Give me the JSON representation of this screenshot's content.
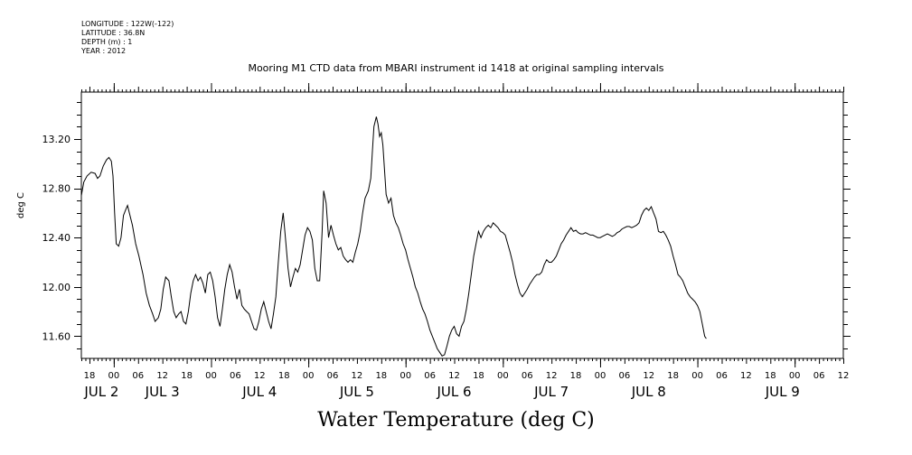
{
  "header": {
    "longitude": "LONGITUDE : 122W(-122)",
    "latitude": "LATITUDE : 36.8N",
    "depth": "DEPTH (m) : 1",
    "year": "YEAR : 2012"
  },
  "chart_data": {
    "type": "line",
    "title": "Mooring M1 CTD data from MBARI instrument id 1418 at original sampling intervals",
    "xlabel": "Water Temperature (deg C)",
    "ylabel": "deg C",
    "x_unit": "hours since JUL 2 00:00 (2012)",
    "xlim": [
      -8,
      180
    ],
    "ylim": [
      11.42,
      13.58
    ],
    "y_ticks": [
      11.6,
      12.0,
      12.4,
      12.8,
      13.2
    ],
    "y_tick_labels": [
      "11.60",
      "12.00",
      "12.40",
      "12.80",
      "13.20"
    ],
    "x_hour_ticks": [
      {
        "hour": -6,
        "label": "18"
      },
      {
        "hour": 0,
        "label": "00"
      },
      {
        "hour": 6,
        "label": "06"
      },
      {
        "hour": 12,
        "label": "12"
      },
      {
        "hour": 18,
        "label": "18"
      },
      {
        "hour": 24,
        "label": "00"
      },
      {
        "hour": 30,
        "label": "06"
      },
      {
        "hour": 36,
        "label": "12"
      },
      {
        "hour": 42,
        "label": "18"
      },
      {
        "hour": 48,
        "label": "00"
      },
      {
        "hour": 54,
        "label": "06"
      },
      {
        "hour": 60,
        "label": "12"
      },
      {
        "hour": 66,
        "label": "18"
      },
      {
        "hour": 72,
        "label": "00"
      },
      {
        "hour": 78,
        "label": "06"
      },
      {
        "hour": 84,
        "label": "12"
      },
      {
        "hour": 90,
        "label": "18"
      },
      {
        "hour": 96,
        "label": "00"
      },
      {
        "hour": 102,
        "label": "06"
      },
      {
        "hour": 108,
        "label": "12"
      },
      {
        "hour": 114,
        "label": "18"
      },
      {
        "hour": 120,
        "label": "00"
      },
      {
        "hour": 126,
        "label": "06"
      },
      {
        "hour": 132,
        "label": "12"
      },
      {
        "hour": 138,
        "label": "18"
      },
      {
        "hour": 144,
        "label": "00"
      },
      {
        "hour": 150,
        "label": "06"
      },
      {
        "hour": 156,
        "label": "12"
      },
      {
        "hour": 162,
        "label": "18"
      },
      {
        "hour": 168,
        "label": "00"
      },
      {
        "hour": 174,
        "label": "06"
      },
      {
        "hour": 180,
        "label": "12"
      }
    ],
    "x_day_labels": [
      {
        "hour": -3,
        "label": "JUL  2"
      },
      {
        "hour": 12,
        "label": "JUL  3"
      },
      {
        "hour": 36,
        "label": "JUL  4"
      },
      {
        "hour": 60,
        "label": "JUL  5"
      },
      {
        "hour": 84,
        "label": "JUL  6"
      },
      {
        "hour": 108,
        "label": "JUL  7"
      },
      {
        "hour": 132,
        "label": "JUL  8"
      },
      {
        "hour": 165,
        "label": "JUL  9"
      }
    ],
    "series": [
      {
        "line_color": "#000000",
        "points": [
          [
            -8,
            12.74
          ],
          [
            -7.4,
            12.85
          ],
          [
            -6.6,
            12.9
          ],
          [
            -5.6,
            12.93
          ],
          [
            -4.6,
            12.92
          ],
          [
            -4,
            12.88
          ],
          [
            -3.4,
            12.9
          ],
          [
            -2.6,
            12.98
          ],
          [
            -1.8,
            13.03
          ],
          [
            -1.2,
            13.05
          ],
          [
            -0.6,
            13.02
          ],
          [
            -0.2,
            12.9
          ],
          [
            0.2,
            12.6
          ],
          [
            0.6,
            12.35
          ],
          [
            1.2,
            12.33
          ],
          [
            1.8,
            12.4
          ],
          [
            2.4,
            12.58
          ],
          [
            3,
            12.63
          ],
          [
            3.4,
            12.66
          ],
          [
            4,
            12.58
          ],
          [
            4.6,
            12.5
          ],
          [
            5.4,
            12.35
          ],
          [
            6.2,
            12.25
          ],
          [
            7.2,
            12.1
          ],
          [
            8,
            11.95
          ],
          [
            8.8,
            11.85
          ],
          [
            9.6,
            11.78
          ],
          [
            10.2,
            11.72
          ],
          [
            11,
            11.75
          ],
          [
            11.6,
            11.82
          ],
          [
            12.2,
            11.98
          ],
          [
            12.8,
            12.08
          ],
          [
            13.6,
            12.05
          ],
          [
            14.2,
            11.92
          ],
          [
            14.8,
            11.8
          ],
          [
            15.4,
            11.75
          ],
          [
            16,
            11.78
          ],
          [
            16.6,
            11.8
          ],
          [
            17.2,
            11.72
          ],
          [
            17.8,
            11.7
          ],
          [
            18.4,
            11.8
          ],
          [
            19,
            11.95
          ],
          [
            19.6,
            12.05
          ],
          [
            20.2,
            12.1
          ],
          [
            20.8,
            12.05
          ],
          [
            21.4,
            12.08
          ],
          [
            22,
            12.03
          ],
          [
            22.6,
            11.95
          ],
          [
            23.2,
            12.1
          ],
          [
            23.8,
            12.12
          ],
          [
            24.4,
            12.05
          ],
          [
            25,
            11.92
          ],
          [
            25.6,
            11.75
          ],
          [
            26.2,
            11.68
          ],
          [
            26.8,
            11.82
          ],
          [
            27.4,
            11.98
          ],
          [
            28,
            12.1
          ],
          [
            28.6,
            12.18
          ],
          [
            29.2,
            12.12
          ],
          [
            29.8,
            12
          ],
          [
            30.4,
            11.9
          ],
          [
            31,
            11.98
          ],
          [
            31.6,
            11.85
          ],
          [
            32.2,
            11.82
          ],
          [
            32.8,
            11.8
          ],
          [
            33.4,
            11.78
          ],
          [
            34,
            11.72
          ],
          [
            34.6,
            11.66
          ],
          [
            35.2,
            11.65
          ],
          [
            35.8,
            11.72
          ],
          [
            36.4,
            11.82
          ],
          [
            37,
            11.88
          ],
          [
            37.6,
            11.8
          ],
          [
            38.2,
            11.72
          ],
          [
            38.8,
            11.66
          ],
          [
            39.4,
            11.78
          ],
          [
            40,
            11.92
          ],
          [
            40.6,
            12.2
          ],
          [
            41.2,
            12.45
          ],
          [
            41.8,
            12.6
          ],
          [
            42.4,
            12.38
          ],
          [
            43,
            12.15
          ],
          [
            43.6,
            12
          ],
          [
            44.2,
            12.08
          ],
          [
            44.8,
            12.15
          ],
          [
            45.4,
            12.12
          ],
          [
            46,
            12.18
          ],
          [
            46.6,
            12.3
          ],
          [
            47.2,
            12.42
          ],
          [
            47.8,
            12.48
          ],
          [
            48.4,
            12.45
          ],
          [
            49,
            12.38
          ],
          [
            49.6,
            12.15
          ],
          [
            50.2,
            12.05
          ],
          [
            50.8,
            12.05
          ],
          [
            51.4,
            12.45
          ],
          [
            51.8,
            12.78
          ],
          [
            52.4,
            12.68
          ],
          [
            53,
            12.4
          ],
          [
            53.6,
            12.5
          ],
          [
            54.2,
            12.42
          ],
          [
            54.8,
            12.35
          ],
          [
            55.4,
            12.3
          ],
          [
            56,
            12.32
          ],
          [
            56.6,
            12.25
          ],
          [
            57.2,
            12.22
          ],
          [
            57.8,
            12.2
          ],
          [
            58.4,
            12.22
          ],
          [
            59,
            12.2
          ],
          [
            59.6,
            12.28
          ],
          [
            60.2,
            12.35
          ],
          [
            60.8,
            12.45
          ],
          [
            61.4,
            12.6
          ],
          [
            62,
            12.72
          ],
          [
            62.8,
            12.78
          ],
          [
            63.4,
            12.88
          ],
          [
            63.8,
            13.1
          ],
          [
            64.2,
            13.3
          ],
          [
            64.8,
            13.38
          ],
          [
            65.2,
            13.32
          ],
          [
            65.6,
            13.22
          ],
          [
            66,
            13.25
          ],
          [
            66.4,
            13.15
          ],
          [
            66.8,
            12.95
          ],
          [
            67.2,
            12.75
          ],
          [
            67.8,
            12.68
          ],
          [
            68.4,
            12.72
          ],
          [
            69,
            12.58
          ],
          [
            69.6,
            12.52
          ],
          [
            70.2,
            12.48
          ],
          [
            70.8,
            12.42
          ],
          [
            71.4,
            12.35
          ],
          [
            72,
            12.3
          ],
          [
            72.6,
            12.22
          ],
          [
            73.2,
            12.15
          ],
          [
            73.8,
            12.08
          ],
          [
            74.4,
            12
          ],
          [
            75,
            11.95
          ],
          [
            75.6,
            11.88
          ],
          [
            76.2,
            11.82
          ],
          [
            76.8,
            11.78
          ],
          [
            77.4,
            11.72
          ],
          [
            78,
            11.65
          ],
          [
            78.6,
            11.6
          ],
          [
            79.2,
            11.55
          ],
          [
            79.8,
            11.5
          ],
          [
            80.4,
            11.47
          ],
          [
            81,
            11.44
          ],
          [
            81.6,
            11.45
          ],
          [
            82.2,
            11.52
          ],
          [
            82.8,
            11.6
          ],
          [
            83.4,
            11.65
          ],
          [
            84,
            11.68
          ],
          [
            84.6,
            11.62
          ],
          [
            85.2,
            11.6
          ],
          [
            85.8,
            11.68
          ],
          [
            86.4,
            11.72
          ],
          [
            87,
            11.82
          ],
          [
            87.6,
            11.95
          ],
          [
            88.2,
            12.1
          ],
          [
            88.8,
            12.25
          ],
          [
            89.4,
            12.35
          ],
          [
            90,
            12.45
          ],
          [
            90.6,
            12.4
          ],
          [
            91.2,
            12.45
          ],
          [
            91.8,
            12.48
          ],
          [
            92.4,
            12.5
          ],
          [
            93,
            12.48
          ],
          [
            93.6,
            12.52
          ],
          [
            94.2,
            12.5
          ],
          [
            94.8,
            12.48
          ],
          [
            95.4,
            12.45
          ],
          [
            96,
            12.44
          ],
          [
            96.6,
            12.42
          ],
          [
            97.2,
            12.35
          ],
          [
            97.8,
            12.28
          ],
          [
            98.4,
            12.2
          ],
          [
            99,
            12.1
          ],
          [
            99.6,
            12.02
          ],
          [
            100.2,
            11.95
          ],
          [
            100.8,
            11.92
          ],
          [
            101.4,
            11.95
          ],
          [
            102,
            11.98
          ],
          [
            102.6,
            12.02
          ],
          [
            103.2,
            12.05
          ],
          [
            103.8,
            12.08
          ],
          [
            104.4,
            12.1
          ],
          [
            105,
            12.1
          ],
          [
            105.6,
            12.12
          ],
          [
            106.2,
            12.18
          ],
          [
            106.8,
            12.22
          ],
          [
            107.4,
            12.2
          ],
          [
            108,
            12.2
          ],
          [
            108.6,
            12.22
          ],
          [
            109.2,
            12.25
          ],
          [
            109.8,
            12.3
          ],
          [
            110.4,
            12.35
          ],
          [
            111,
            12.38
          ],
          [
            111.6,
            12.42
          ],
          [
            112.2,
            12.45
          ],
          [
            112.8,
            12.48
          ],
          [
            113.4,
            12.45
          ],
          [
            114,
            12.46
          ],
          [
            114.6,
            12.44
          ],
          [
            115.2,
            12.43
          ],
          [
            115.8,
            12.43
          ],
          [
            116.4,
            12.44
          ],
          [
            117,
            12.43
          ],
          [
            117.6,
            12.42
          ],
          [
            118.2,
            12.42
          ],
          [
            118.8,
            12.41
          ],
          [
            119.4,
            12.4
          ],
          [
            120,
            12.4
          ],
          [
            120.6,
            12.41
          ],
          [
            121.2,
            12.42
          ],
          [
            121.8,
            12.43
          ],
          [
            122.4,
            12.42
          ],
          [
            123,
            12.41
          ],
          [
            123.6,
            12.42
          ],
          [
            124.2,
            12.44
          ],
          [
            124.8,
            12.45
          ],
          [
            125.4,
            12.47
          ],
          [
            126,
            12.48
          ],
          [
            126.6,
            12.49
          ],
          [
            127.2,
            12.49
          ],
          [
            127.8,
            12.48
          ],
          [
            128.4,
            12.49
          ],
          [
            129,
            12.5
          ],
          [
            129.6,
            12.52
          ],
          [
            130.2,
            12.58
          ],
          [
            130.8,
            12.62
          ],
          [
            131.4,
            12.64
          ],
          [
            132,
            12.62
          ],
          [
            132.6,
            12.65
          ],
          [
            133.2,
            12.6
          ],
          [
            133.8,
            12.55
          ],
          [
            134.4,
            12.45
          ],
          [
            135,
            12.44
          ],
          [
            135.6,
            12.45
          ],
          [
            136.2,
            12.42
          ],
          [
            136.8,
            12.38
          ],
          [
            137.4,
            12.33
          ],
          [
            138,
            12.25
          ],
          [
            138.6,
            12.18
          ],
          [
            139.2,
            12.1
          ],
          [
            139.8,
            12.08
          ],
          [
            140.4,
            12.05
          ],
          [
            141,
            12
          ],
          [
            141.6,
            11.95
          ],
          [
            142.2,
            11.92
          ],
          [
            142.8,
            11.9
          ],
          [
            143.4,
            11.88
          ],
          [
            144,
            11.85
          ],
          [
            144.6,
            11.8
          ],
          [
            145.2,
            11.7
          ],
          [
            145.8,
            11.6
          ],
          [
            146.2,
            11.58
          ]
        ]
      }
    ]
  }
}
